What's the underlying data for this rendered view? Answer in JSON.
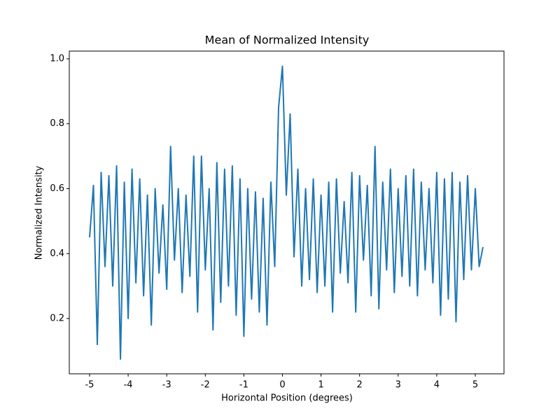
{
  "chart_data": {
    "type": "line",
    "title": "Mean of Normalized Intensity",
    "x_label": "Horizontal Position (degrees)",
    "y_label": "Normalized Intensity",
    "x": [
      -5.0,
      -4.9,
      -4.8,
      -4.7,
      -4.6,
      -4.5,
      -4.4,
      -4.3,
      -4.2,
      -4.1,
      -4.0,
      -3.9,
      -3.8,
      -3.7,
      -3.6,
      -3.5,
      -3.4,
      -3.3,
      -3.2,
      -3.1,
      -3.0,
      -2.9,
      -2.8,
      -2.7,
      -2.6,
      -2.5,
      -2.4,
      -2.3,
      -2.2,
      -2.1,
      -2.0,
      -1.9,
      -1.8,
      -1.7,
      -1.6,
      -1.5,
      -1.4,
      -1.3,
      -1.2,
      -1.1,
      -1.0,
      -0.9,
      -0.8,
      -0.7,
      -0.6,
      -0.5,
      -0.4,
      -0.3,
      -0.2,
      -0.1,
      0.0,
      0.1,
      0.2,
      0.3,
      0.4,
      0.5,
      0.6,
      0.7,
      0.8,
      0.9,
      1.0,
      1.1,
      1.2,
      1.3,
      1.4,
      1.5,
      1.6,
      1.7,
      1.8,
      1.9,
      2.0,
      2.1,
      2.2,
      2.3,
      2.4,
      2.5,
      2.6,
      2.7,
      2.8,
      2.9,
      3.0,
      3.1,
      3.2,
      3.3,
      3.4,
      3.5,
      3.6,
      3.7,
      3.8,
      3.9,
      4.0,
      4.1,
      4.2,
      4.3,
      4.4,
      4.5,
      4.6,
      4.7,
      4.8,
      4.9,
      5.0,
      5.1,
      5.2
    ],
    "series": [
      {
        "color": "#1f77b4",
        "values": [
          0.45,
          0.61,
          0.12,
          0.65,
          0.36,
          0.64,
          0.3,
          0.67,
          0.075,
          0.62,
          0.2,
          0.66,
          0.31,
          0.63,
          0.27,
          0.58,
          0.18,
          0.6,
          0.34,
          0.55,
          0.29,
          0.73,
          0.38,
          0.6,
          0.28,
          0.58,
          0.33,
          0.7,
          0.22,
          0.7,
          0.35,
          0.6,
          0.165,
          0.68,
          0.25,
          0.66,
          0.3,
          0.67,
          0.21,
          0.63,
          0.145,
          0.6,
          0.26,
          0.59,
          0.22,
          0.57,
          0.18,
          0.62,
          0.36,
          0.85,
          0.977,
          0.58,
          0.83,
          0.39,
          0.66,
          0.3,
          0.6,
          0.32,
          0.63,
          0.28,
          0.58,
          0.3,
          0.62,
          0.22,
          0.63,
          0.34,
          0.56,
          0.31,
          0.65,
          0.22,
          0.64,
          0.38,
          0.61,
          0.27,
          0.73,
          0.23,
          0.62,
          0.35,
          0.66,
          0.28,
          0.6,
          0.33,
          0.64,
          0.3,
          0.66,
          0.27,
          0.62,
          0.35,
          0.6,
          0.31,
          0.65,
          0.21,
          0.63,
          0.26,
          0.65,
          0.19,
          0.62,
          0.32,
          0.64,
          0.35,
          0.6,
          0.36,
          0.42
        ]
      }
    ],
    "xlim": [
      -5.526,
      5.744
    ],
    "ylim": [
      0.0297,
      1.0237
    ],
    "xticks": [
      -5,
      -4,
      -3,
      -2,
      -1,
      0,
      1,
      2,
      3,
      4,
      5
    ],
    "yticks": [
      0.2,
      0.4,
      0.6,
      0.8,
      {
        "value": 1,
        "label": "1.0"
      }
    ]
  }
}
